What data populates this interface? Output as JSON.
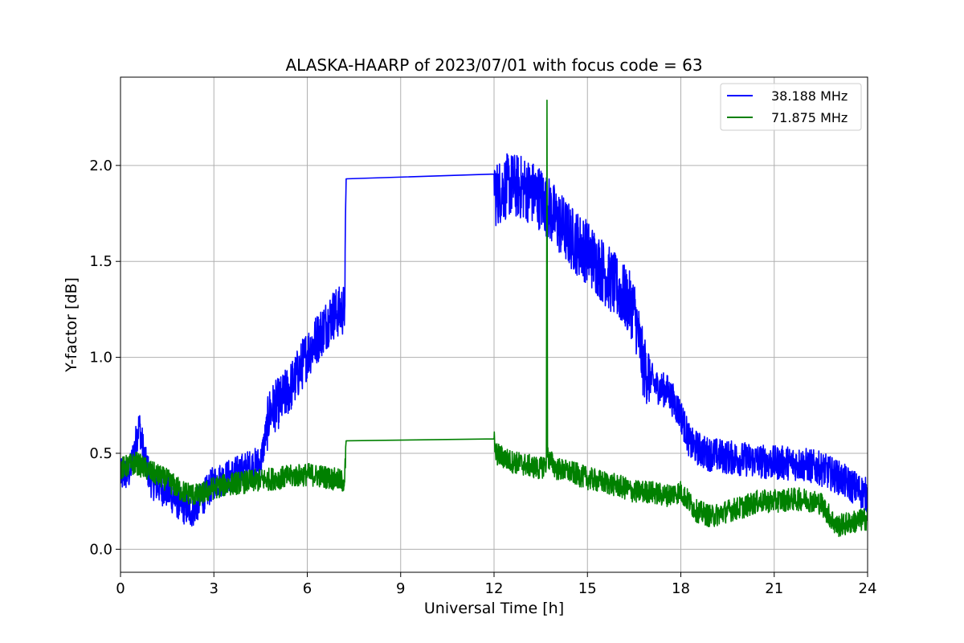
{
  "chart_data": {
    "type": "line",
    "title": "ALASKA-HAARP of 2023/07/01 with focus code = 63",
    "xlabel": "Universal Time [h]",
    "ylabel": "Y-factor [dB]",
    "xlim": [
      0,
      24
    ],
    "ylim": [
      -0.12,
      2.46
    ],
    "xticks": [
      0,
      3,
      6,
      9,
      12,
      15,
      18,
      21,
      24
    ],
    "yticks": [
      0.0,
      0.5,
      1.0,
      1.5,
      2.0
    ],
    "xtick_labels": [
      "0",
      "3",
      "6",
      "9",
      "12",
      "15",
      "18",
      "21",
      "24"
    ],
    "ytick_labels": [
      "0.0",
      "0.5",
      "1.0",
      "1.5",
      "2.0"
    ],
    "grid": true,
    "legend_position": "top-right",
    "series": [
      {
        "name": "38.188 MHz",
        "color": "#0000ff",
        "x": [
          0.0,
          0.3,
          0.6,
          0.8,
          1.0,
          1.5,
          2.0,
          2.3,
          2.7,
          3.0,
          3.5,
          4.0,
          4.5,
          4.8,
          5.2,
          5.6,
          6.0,
          6.4,
          6.8,
          7.2,
          7.25,
          12.0,
          12.05,
          12.5,
          13.0,
          13.5,
          14.0,
          14.5,
          15.0,
          15.5,
          16.0,
          16.5,
          16.8,
          17.2,
          17.6,
          18.0,
          18.3,
          18.8,
          19.5,
          20.0,
          20.5,
          21.0,
          21.5,
          22.0,
          22.5,
          23.0,
          23.5,
          24.0
        ],
        "y": [
          0.38,
          0.4,
          0.65,
          0.45,
          0.35,
          0.3,
          0.22,
          0.2,
          0.28,
          0.35,
          0.38,
          0.42,
          0.45,
          0.72,
          0.78,
          0.88,
          1.02,
          1.12,
          1.22,
          1.25,
          1.93,
          1.955,
          1.85,
          1.9,
          1.88,
          1.83,
          1.72,
          1.62,
          1.55,
          1.45,
          1.35,
          1.25,
          0.95,
          0.85,
          0.82,
          0.7,
          0.55,
          0.5,
          0.48,
          0.47,
          0.46,
          0.45,
          0.45,
          0.44,
          0.42,
          0.38,
          0.33,
          0.28
        ]
      },
      {
        "name": "71.875 MHz",
        "color": "#008000",
        "x": [
          0.0,
          0.5,
          1.0,
          1.5,
          2.0,
          2.5,
          3.0,
          3.5,
          4.0,
          4.5,
          5.0,
          5.5,
          6.0,
          6.5,
          7.0,
          7.2,
          7.25,
          12.0,
          12.05,
          12.5,
          13.0,
          13.5,
          13.68,
          13.7,
          13.72,
          14.0,
          14.5,
          15.0,
          15.5,
          16.0,
          16.5,
          17.0,
          17.5,
          18.0,
          18.5,
          19.0,
          19.5,
          20.0,
          20.5,
          21.0,
          21.5,
          22.0,
          22.5,
          23.0,
          23.5,
          24.0
        ],
        "y": [
          0.42,
          0.45,
          0.4,
          0.36,
          0.3,
          0.28,
          0.32,
          0.34,
          0.35,
          0.36,
          0.37,
          0.38,
          0.39,
          0.38,
          0.36,
          0.35,
          0.565,
          0.575,
          0.5,
          0.46,
          0.44,
          0.42,
          0.45,
          2.34,
          0.48,
          0.42,
          0.4,
          0.37,
          0.35,
          0.33,
          0.3,
          0.3,
          0.28,
          0.3,
          0.2,
          0.17,
          0.2,
          0.22,
          0.25,
          0.25,
          0.26,
          0.26,
          0.24,
          0.12,
          0.14,
          0.16
        ]
      }
    ]
  }
}
